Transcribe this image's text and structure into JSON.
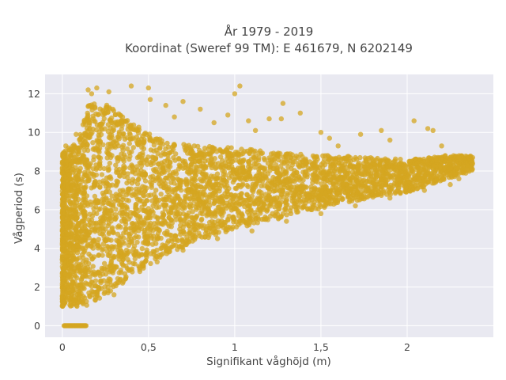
{
  "chart_data": {
    "type": "scatter",
    "title_line1": "År 1979 - 2019",
    "title_line2": "Koordinat (Sweref 99 TM): E 461679, N 6202149",
    "xlabel": "Signifikant våghöjd (m)",
    "ylabel": "Vågperiod (s)",
    "xlim": [
      -0.1,
      2.5
    ],
    "ylim": [
      -0.6,
      13.0
    ],
    "x_ticks": [
      0,
      0.5,
      1,
      1.5,
      2
    ],
    "x_tick_labels": [
      "0",
      "0,5",
      "1",
      "1,5",
      "2"
    ],
    "y_ticks": [
      0,
      2,
      4,
      6,
      8,
      10,
      12
    ],
    "y_tick_labels": [
      "0",
      "2",
      "4",
      "6",
      "8",
      "10",
      "12"
    ],
    "grid": true,
    "colors": {
      "marker": "#d4a520",
      "plot_background": "#e9e9f1",
      "grid": "#ffffff",
      "text": "#444444"
    },
    "series": [
      {
        "marker_opacity": 0.75,
        "envelope": [
          {
            "x": 0.0,
            "ymin": 1.0,
            "ymax": 8.9
          },
          {
            "x": 0.1,
            "ymin": 1.0,
            "ymax": 9.8
          },
          {
            "x": 0.15,
            "ymin": 1.0,
            "ymax": 11.5
          },
          {
            "x": 0.25,
            "ymin": 1.5,
            "ymax": 11.5
          },
          {
            "x": 0.4,
            "ymin": 2.6,
            "ymax": 10.5
          },
          {
            "x": 0.6,
            "ymin": 3.6,
            "ymax": 9.5
          },
          {
            "x": 0.8,
            "ymin": 4.4,
            "ymax": 9.3
          },
          {
            "x": 1.0,
            "ymin": 5.0,
            "ymax": 9.2
          },
          {
            "x": 1.2,
            "ymin": 5.4,
            "ymax": 9.0
          },
          {
            "x": 1.4,
            "ymin": 5.8,
            "ymax": 8.9
          },
          {
            "x": 1.6,
            "ymin": 6.3,
            "ymax": 8.8
          },
          {
            "x": 1.8,
            "ymin": 6.6,
            "ymax": 8.7
          },
          {
            "x": 2.0,
            "ymin": 6.9,
            "ymax": 8.6
          },
          {
            "x": 2.2,
            "ymin": 7.5,
            "ymax": 8.8
          },
          {
            "x": 2.38,
            "ymin": 8.0,
            "ymax": 8.8
          }
        ],
        "zero_period_points": {
          "x_range": [
            0.01,
            0.14
          ],
          "y": 0
        },
        "outliers": [
          {
            "x": 0.15,
            "y": 12.2
          },
          {
            "x": 0.17,
            "y": 12.0
          },
          {
            "x": 0.2,
            "y": 12.3
          },
          {
            "x": 0.27,
            "y": 12.1
          },
          {
            "x": 0.4,
            "y": 12.4
          },
          {
            "x": 0.5,
            "y": 12.3
          },
          {
            "x": 0.51,
            "y": 11.7
          },
          {
            "x": 0.6,
            "y": 11.4
          },
          {
            "x": 0.7,
            "y": 11.6
          },
          {
            "x": 0.8,
            "y": 11.2
          },
          {
            "x": 1.0,
            "y": 12.0
          },
          {
            "x": 1.03,
            "y": 12.4
          },
          {
            "x": 0.96,
            "y": 10.9
          },
          {
            "x": 1.08,
            "y": 10.6
          },
          {
            "x": 1.2,
            "y": 10.7
          },
          {
            "x": 1.28,
            "y": 11.5
          },
          {
            "x": 1.27,
            "y": 10.7
          },
          {
            "x": 1.38,
            "y": 11.0
          },
          {
            "x": 1.5,
            "y": 10.0
          },
          {
            "x": 1.55,
            "y": 9.7
          },
          {
            "x": 1.73,
            "y": 9.9
          },
          {
            "x": 1.85,
            "y": 10.1
          },
          {
            "x": 1.9,
            "y": 9.6
          },
          {
            "x": 2.04,
            "y": 10.6
          },
          {
            "x": 2.12,
            "y": 10.2
          },
          {
            "x": 2.15,
            "y": 10.1
          },
          {
            "x": 2.2,
            "y": 9.3
          },
          {
            "x": 2.3,
            "y": 8.7
          },
          {
            "x": 2.38,
            "y": 8.7
          },
          {
            "x": 2.35,
            "y": 8.3
          },
          {
            "x": 0.02,
            "y": 9.3
          },
          {
            "x": 0.04,
            "y": 9.1
          },
          {
            "x": 0.08,
            "y": 9.9
          },
          {
            "x": 0.12,
            "y": 10.4
          },
          {
            "x": 1.12,
            "y": 10.1
          },
          {
            "x": 0.88,
            "y": 10.5
          },
          {
            "x": 0.65,
            "y": 10.8
          },
          {
            "x": 1.6,
            "y": 9.3
          },
          {
            "x": 2.25,
            "y": 8.2
          },
          {
            "x": 0.3,
            "y": 1.6
          },
          {
            "x": 0.28,
            "y": 1.8
          },
          {
            "x": 0.35,
            "y": 2.2
          },
          {
            "x": 0.45,
            "y": 2.8
          },
          {
            "x": 0.55,
            "y": 3.3
          },
          {
            "x": 0.7,
            "y": 3.9
          },
          {
            "x": 0.9,
            "y": 4.5
          },
          {
            "x": 1.1,
            "y": 4.9
          },
          {
            "x": 1.3,
            "y": 5.4
          },
          {
            "x": 1.5,
            "y": 5.8
          },
          {
            "x": 1.7,
            "y": 6.2
          },
          {
            "x": 1.9,
            "y": 6.6
          },
          {
            "x": 2.1,
            "y": 7.0
          },
          {
            "x": 2.25,
            "y": 7.3
          },
          {
            "x": 2.3,
            "y": 7.6
          }
        ]
      }
    ]
  }
}
